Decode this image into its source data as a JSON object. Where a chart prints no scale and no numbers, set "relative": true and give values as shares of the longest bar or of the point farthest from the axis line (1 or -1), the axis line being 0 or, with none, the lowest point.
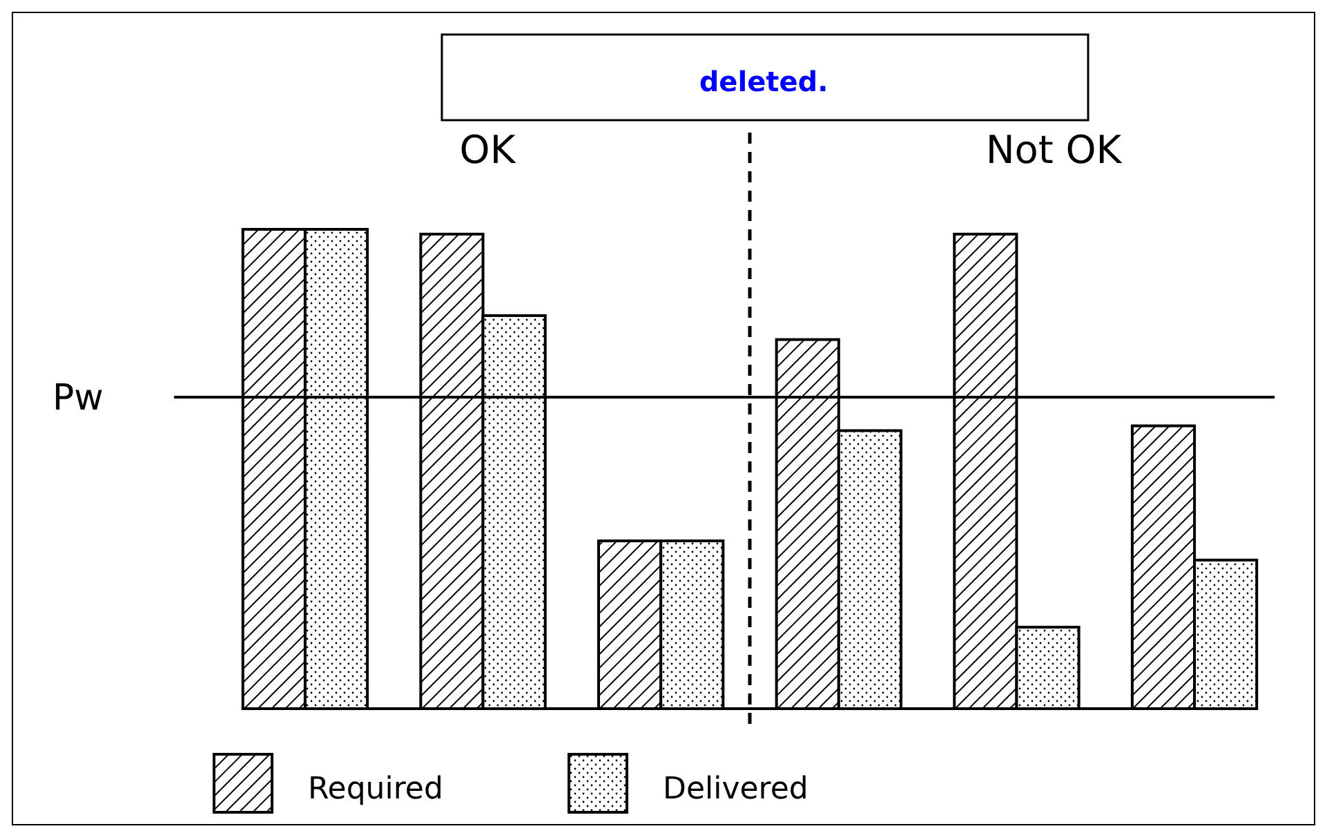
{
  "chart_data": {
    "type": "bar",
    "relative": true,
    "categories": [
      null,
      null,
      null,
      null,
      null,
      null
    ],
    "series": [
      {
        "name": "Required",
        "color": "#000000",
        "values": [
          1.0,
          0.99,
          0.35,
          0.77,
          0.99,
          0.59
        ]
      },
      {
        "name": "Delivered",
        "color": "#000000",
        "values": [
          1.0,
          0.82,
          0.35,
          0.58,
          0.17,
          0.31
        ]
      }
    ],
    "ref_lines": [
      {
        "axis": "y",
        "value": 0.65,
        "label": "Pw",
        "line_style": "solid",
        "color": "#000000"
      }
    ],
    "annotations": [
      "deleted.",
      "OK",
      "Not OK"
    ],
    "legend": "bottom",
    "grid": false
  }
}
